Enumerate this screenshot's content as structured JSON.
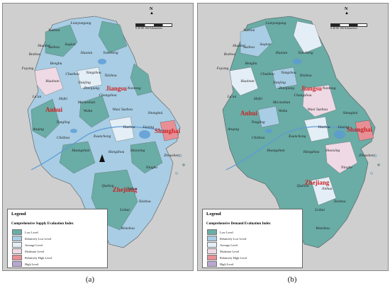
{
  "colors": {
    "background": "#cfcfcf",
    "low": "#6aaca6",
    "relatively_low": "#a8cde4",
    "average": "#e4eef6",
    "moderate": "#eed9e4",
    "relatively_high": "#e88f96",
    "high": "#b9a7d3",
    "province_label": "#cc2222",
    "water": "#5a9bd6"
  },
  "panels": [
    {
      "caption": "(a)",
      "legend": {
        "title": "Legend",
        "subtitle": "Comprehensive Supply Evaluation Index",
        "items": [
          "Low Level",
          "Relatively Low Level",
          "Average Level",
          "Moderate Level",
          "Relatively High Level",
          "High Level"
        ]
      },
      "north_label": "N",
      "scale_labels": "0  40  80      160",
      "scale_unit": "Kilometers",
      "provinces": [
        "Jiangsu",
        "Anhui",
        "Zhejiang",
        "Shanghai"
      ],
      "cities": [
        "Xuzhou",
        "Lianyungang",
        "Suqian",
        "Huaibei",
        "Bozhou",
        "Suzhou",
        "Huaian",
        "Yancheng",
        "Fuyang",
        "Bengbu",
        "Huainan",
        "Chuzhou",
        "Yangzhou",
        "Taizhou",
        "Lu'an",
        "Hefei",
        "Zhenjiang",
        "Nanjing",
        "Changzhou",
        "Nantong",
        "Ma'anshan",
        "Wuxi",
        "Wuhu",
        "Suzhou",
        "Shanghai",
        "Anqing",
        "Tongling",
        "Chizhou",
        "Xuancheng",
        "Huzhou",
        "Jiaxing",
        "Huangshan",
        "Hangzhou",
        "Shaoxing",
        "Zhoushan",
        "Ningbo",
        "Jinhua",
        "Quzhou",
        "Taizhou",
        "Lishui",
        "Wenzhou"
      ]
    },
    {
      "caption": "(b)",
      "legend": {
        "title": "Legend",
        "subtitle": "Comprehensive Demand Evaluation Index",
        "items": [
          "Low Level",
          "Relatively Low Level",
          "Average Level",
          "Moderate Level",
          "Relatively High Level",
          "High Level"
        ]
      },
      "north_label": "N",
      "scale_labels": "0  40  80      160",
      "scale_unit": "Kilometers",
      "provinces": [
        "Jiangsu",
        "Anhui",
        "Zhejiang",
        "Shanghai"
      ],
      "cities": [
        "Xuzhou",
        "Lianyungang",
        "Suqian",
        "Huaibei",
        "Bozhou",
        "Suzhou",
        "Huaian",
        "Yancheng",
        "Fuyang",
        "Bengbu",
        "Huainan",
        "Chuzhou",
        "Yangzhou",
        "Taizhou",
        "Lu'an",
        "Hefei",
        "Zhenjiang",
        "Nanjing",
        "Changzhou",
        "Nantong",
        "Ma'anshan",
        "Wuxi",
        "Wuhu",
        "Suzhou",
        "Shanghai",
        "Anqing",
        "Tongling",
        "Chizhou",
        "Xuancheng",
        "Huzhou",
        "Jiaxing",
        "Huangshan",
        "Hangzhou",
        "Shaoxing",
        "Zhoushan",
        "Ningbo",
        "Jinhua",
        "Quzhou",
        "Taizhou",
        "Lishui",
        "Wenzhou"
      ]
    }
  ]
}
